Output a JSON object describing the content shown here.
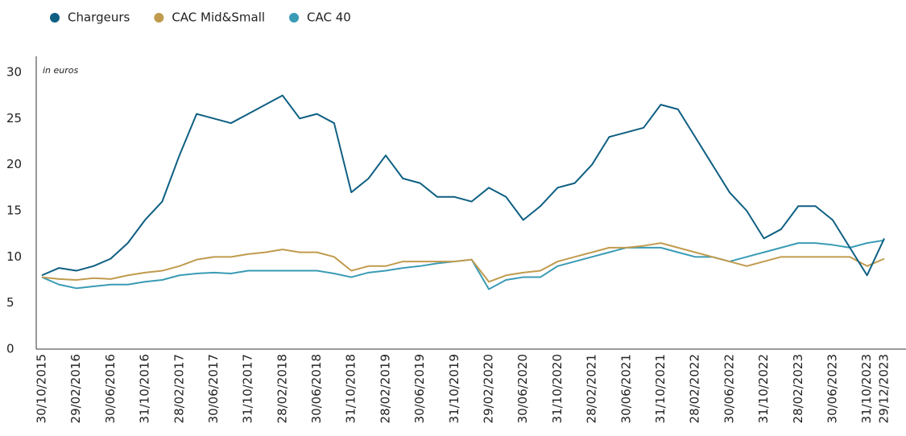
{
  "chart_data": {
    "type": "line",
    "annotation": "in euros",
    "legend": "top-left",
    "grid": false,
    "categories": [
      "30/10/2015",
      null,
      "29/02/2016",
      null,
      "30/06/2016",
      null,
      "31/10/2016",
      null,
      "28/02/2017",
      null,
      "30/06/2017",
      null,
      "31/10/2017",
      null,
      "28/02/2018",
      null,
      "30/06/2018",
      null,
      "31/10/2018",
      null,
      "28/02/2019",
      null,
      "30/06/2019",
      null,
      "31/10/2019",
      null,
      "29/02/2020",
      null,
      "30/06/2020",
      null,
      "31/10/2020",
      null,
      "28/02/2021",
      null,
      "30/06/2021",
      null,
      "31/10/2021",
      null,
      "28/02/2022",
      null,
      "30/06/2022",
      null,
      "31/10/2022",
      null,
      "28/02/2023",
      null,
      "30/06/2023",
      null,
      "31/10/2023",
      "29/12/2023"
    ],
    "ylim": [
      0,
      30
    ],
    "yticks": [
      0,
      5,
      10,
      15,
      20,
      25,
      30
    ],
    "series": [
      {
        "name": "Chargeurs",
        "color": "#0e5f82",
        "values": [
          8,
          8.8,
          8.5,
          9,
          9.8,
          11.5,
          14,
          16,
          21,
          25.5,
          25,
          24.5,
          25.5,
          26.5,
          27.5,
          25,
          25.5,
          24.5,
          17,
          18.5,
          21,
          18.5,
          18,
          16.5,
          16.5,
          16,
          17.5,
          16.5,
          14,
          15.5,
          17.5,
          18,
          20,
          23,
          23.5,
          24,
          26.5,
          26,
          23,
          20,
          17,
          15,
          12,
          13,
          15.5,
          15.5,
          14,
          11,
          8,
          12
        ]
      },
      {
        "name": "CAC Mid&Small",
        "color": "#c09b4e",
        "values": [
          7.8,
          7.6,
          7.5,
          7.7,
          7.6,
          8,
          8.3,
          8.5,
          9,
          9.7,
          10,
          10,
          10.3,
          10.5,
          10.8,
          10.5,
          10.5,
          10,
          8.5,
          9,
          9,
          9.5,
          9.5,
          9.5,
          9.5,
          9.7,
          7.3,
          8,
          8.3,
          8.5,
          9.5,
          10,
          10.5,
          11,
          11,
          11.2,
          11.5,
          11,
          10.5,
          10,
          9.5,
          9,
          9.5,
          10,
          10,
          10,
          10,
          10,
          9,
          9.8
        ]
      },
      {
        "name": "CAC 40",
        "color": "#3a9bb5",
        "values": [
          7.8,
          7,
          6.6,
          6.8,
          7,
          7,
          7.3,
          7.5,
          8,
          8.2,
          8.3,
          8.2,
          8.5,
          8.5,
          8.5,
          8.5,
          8.5,
          8.2,
          7.8,
          8.3,
          8.5,
          8.8,
          9,
          9.3,
          9.5,
          9.7,
          6.5,
          7.5,
          7.8,
          7.8,
          9,
          9.5,
          10,
          10.5,
          11,
          11,
          11,
          10.5,
          10,
          10,
          9.5,
          10,
          10.5,
          11,
          11.5,
          11.5,
          11.3,
          11,
          11.5,
          11.8
        ]
      }
    ]
  }
}
